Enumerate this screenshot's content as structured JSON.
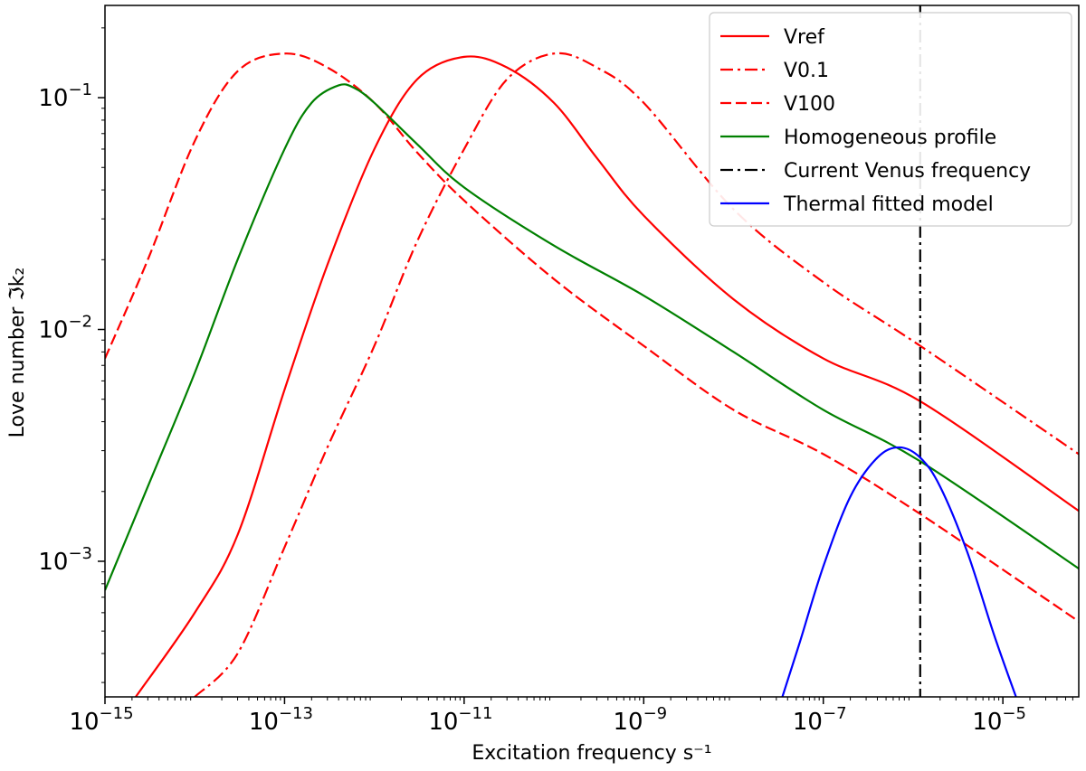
{
  "chart_data": {
    "type": "line",
    "title": "",
    "xlabel": "Excitation frequency s⁻¹",
    "ylabel": "Love number ℑk₂",
    "xscale": "log",
    "yscale": "log",
    "xlim": [
      1e-15,
      7e-05
    ],
    "ylim": [
      0.00026,
      0.25
    ],
    "grid": false,
    "legend_position": "top-right",
    "x_ticks": [
      1e-15,
      1e-13,
      1e-11,
      1e-09,
      1e-07,
      1e-05
    ],
    "x_tick_labels": [
      {
        "base": "10",
        "exp": "−15"
      },
      {
        "base": "10",
        "exp": "−13"
      },
      {
        "base": "10",
        "exp": "−11"
      },
      {
        "base": "10",
        "exp": "−9"
      },
      {
        "base": "10",
        "exp": "−7"
      },
      {
        "base": "10",
        "exp": "−5"
      }
    ],
    "y_ticks": [
      0.001,
      0.01,
      0.1
    ],
    "y_tick_labels": [
      {
        "base": "10",
        "exp": "−3"
      },
      {
        "base": "10",
        "exp": "−2"
      },
      {
        "base": "10",
        "exp": "−1"
      }
    ],
    "series": [
      {
        "name": "Vref",
        "color": "#ff0000",
        "dash": "solid",
        "x": [
          2.2e-15,
          1e-14,
          3e-14,
          1e-13,
          3e-13,
          1e-12,
          3e-12,
          1e-11,
          3e-11,
          1e-10,
          3e-10,
          1e-09,
          1e-08,
          1e-07,
          1.2e-06,
          7e-05
        ],
        "y": [
          0.00026,
          0.0006,
          0.0013,
          0.0055,
          0.019,
          0.06,
          0.12,
          0.15,
          0.135,
          0.095,
          0.055,
          0.031,
          0.0135,
          0.0075,
          0.0049,
          0.00165
        ]
      },
      {
        "name": "V0.1",
        "color": "#ff0000",
        "dash": "dashdot",
        "x": [
          1e-14,
          3e-14,
          1e-13,
          3e-13,
          1e-12,
          3e-12,
          1e-11,
          3e-11,
          1e-10,
          3e-10,
          1e-09,
          1e-08,
          1e-07,
          1.2e-06,
          7e-05
        ],
        "y": [
          0.00026,
          0.0004,
          0.00115,
          0.0031,
          0.0085,
          0.024,
          0.06,
          0.12,
          0.155,
          0.135,
          0.095,
          0.033,
          0.016,
          0.0085,
          0.0029
        ]
      },
      {
        "name": "V100",
        "color": "#ff0000",
        "dash": "dashed",
        "x": [
          1e-15,
          3e-15,
          1e-14,
          3e-14,
          1e-13,
          3e-13,
          1e-12,
          3e-12,
          1e-11,
          1e-10,
          1e-09,
          1e-08,
          1e-07,
          1.2e-06,
          7e-05
        ],
        "y": [
          0.0075,
          0.02,
          0.065,
          0.13,
          0.155,
          0.135,
          0.095,
          0.058,
          0.036,
          0.0165,
          0.0085,
          0.0045,
          0.0029,
          0.0016,
          0.00055
        ]
      },
      {
        "name": "Homogeneous profile",
        "color": "#008000",
        "dash": "solid",
        "x": [
          1e-15,
          3e-15,
          1e-14,
          3e-14,
          1e-13,
          2e-13,
          4e-13,
          6e-13,
          1e-12,
          3e-12,
          1e-11,
          1e-10,
          1e-09,
          1e-08,
          1e-07,
          1.2e-06,
          7e-05
        ],
        "y": [
          0.00075,
          0.0021,
          0.0065,
          0.02,
          0.06,
          0.095,
          0.113,
          0.11,
          0.095,
          0.063,
          0.041,
          0.023,
          0.014,
          0.008,
          0.0045,
          0.0027,
          0.00093
        ]
      },
      {
        "name": "Current Venus frequency",
        "color": "#000000",
        "dash": "dashdot",
        "vline_x": 1.2e-06
      },
      {
        "name": "Thermal fitted model",
        "color": "#0000ff",
        "dash": "solid",
        "x": [
          3.5e-08,
          5.5e-08,
          1e-07,
          2e-07,
          4e-07,
          7e-07,
          1.2e-06,
          2e-06,
          4e-06,
          8e-06,
          1.4e-05
        ],
        "y": [
          0.00026,
          0.00045,
          0.00095,
          0.0019,
          0.0028,
          0.0031,
          0.0028,
          0.0021,
          0.0011,
          0.00048,
          0.00026
        ]
      }
    ]
  }
}
